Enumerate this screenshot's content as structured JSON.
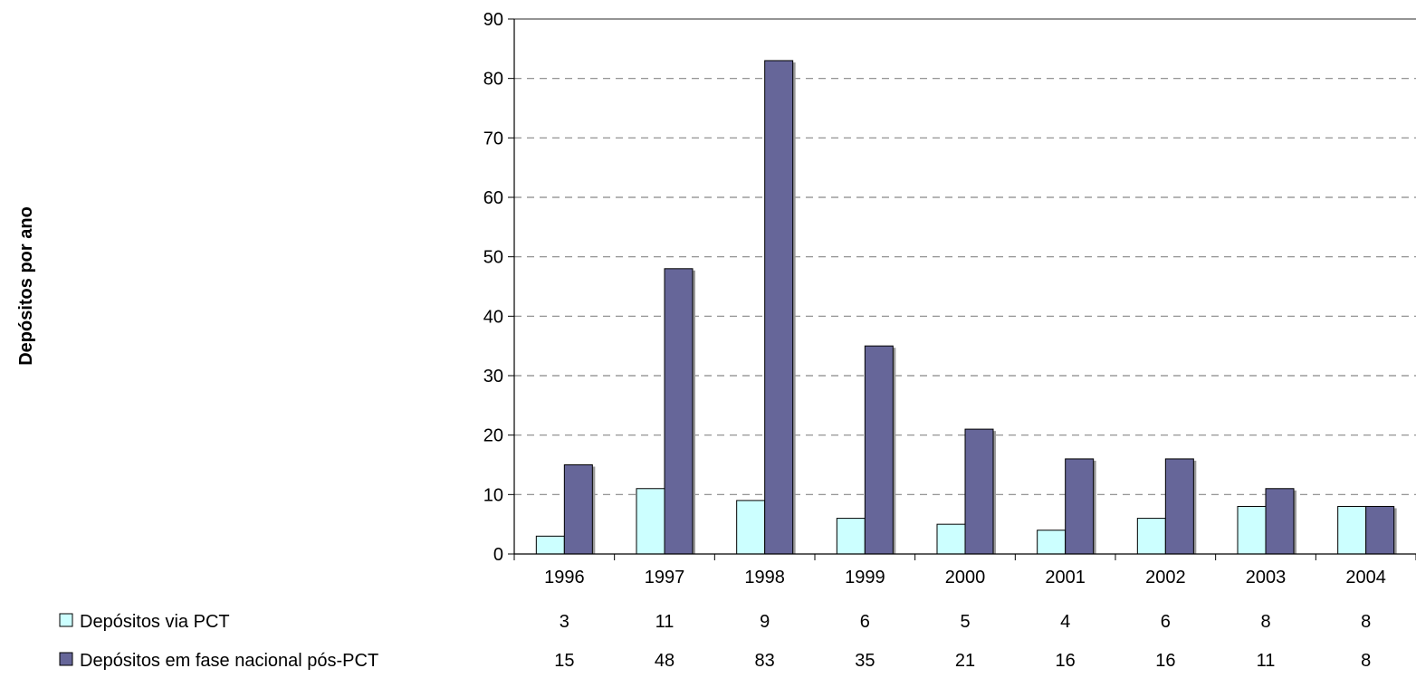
{
  "chart_data": {
    "type": "bar",
    "ylabel": "Depósitos por ano",
    "ylim": [
      0,
      90
    ],
    "yticks": [
      0,
      10,
      20,
      30,
      40,
      50,
      60,
      70,
      80,
      90
    ],
    "categories": [
      "1996",
      "1997",
      "1998",
      "1999",
      "2000",
      "2001",
      "2002",
      "2003",
      "2004"
    ],
    "grid": "horizontal dashed",
    "legend_placement": "bottom-left, data table",
    "series": [
      {
        "name": "Depósitos via PCT",
        "values": [
          3,
          11,
          9,
          6,
          5,
          4,
          6,
          8,
          8
        ],
        "color": "#ccffff"
      },
      {
        "name": "Depósitos em fase nacional pós-PCT",
        "values": [
          15,
          48,
          83,
          35,
          21,
          16,
          16,
          11,
          8
        ],
        "color": "#666699"
      }
    ]
  }
}
